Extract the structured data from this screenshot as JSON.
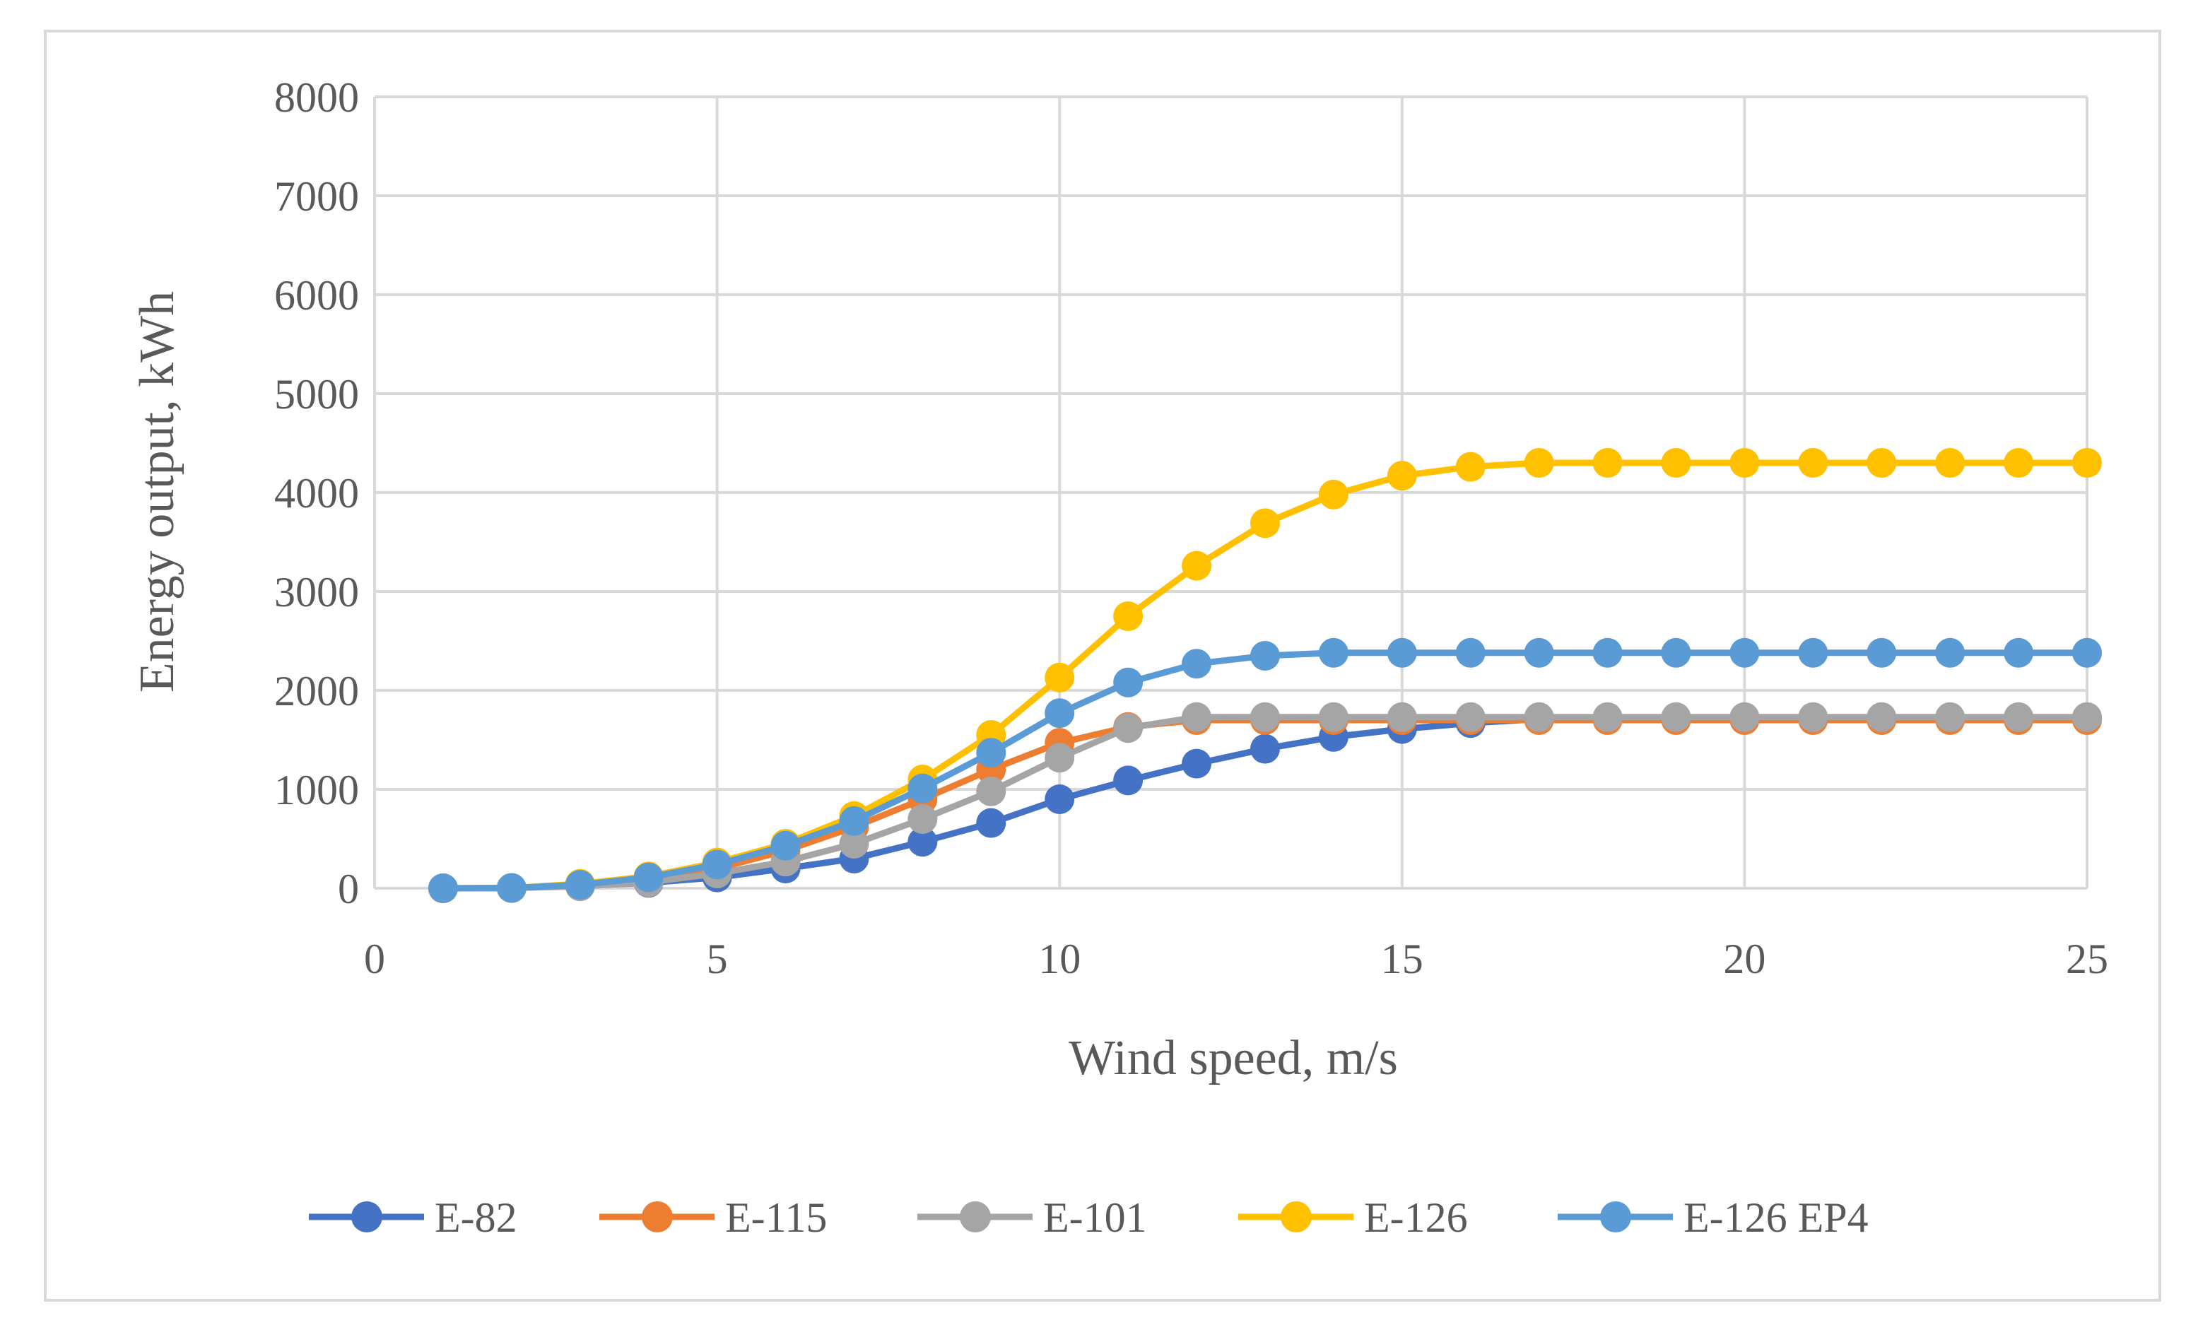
{
  "chart_data": {
    "type": "line",
    "title": "",
    "xlabel": "Wind speed, m/s",
    "ylabel": "Energy output, kWh",
    "xlim": [
      0,
      25
    ],
    "ylim": [
      0,
      8000
    ],
    "xticks": [
      0,
      5,
      10,
      15,
      20,
      25
    ],
    "yticks": [
      0,
      1000,
      2000,
      3000,
      4000,
      5000,
      6000,
      7000,
      8000
    ],
    "x": [
      1,
      2,
      3,
      4,
      5,
      6,
      7,
      8,
      9,
      10,
      11,
      12,
      13,
      14,
      15,
      16,
      17,
      18,
      19,
      20,
      21,
      22,
      23,
      24,
      25
    ],
    "grid": true,
    "legend_position": "bottom",
    "series": [
      {
        "name": "E-82",
        "color": "#4472c4",
        "values": [
          0,
          3,
          25,
          55,
          110,
          200,
          300,
          470,
          660,
          900,
          1090,
          1260,
          1410,
          1530,
          1610,
          1670,
          1710,
          1720,
          1720,
          1720,
          1720,
          1720,
          1720,
          1720,
          1720
        ]
      },
      {
        "name": "E-115",
        "color": "#ed7d31",
        "values": [
          0,
          3,
          35,
          100,
          200,
          380,
          620,
          900,
          1200,
          1470,
          1630,
          1700,
          1700,
          1700,
          1700,
          1700,
          1700,
          1700,
          1700,
          1700,
          1700,
          1700,
          1700,
          1700,
          1700
        ]
      },
      {
        "name": "E-101",
        "color": "#a5a5a5",
        "values": [
          0,
          3,
          20,
          60,
          150,
          270,
          450,
          700,
          980,
          1320,
          1620,
          1730,
          1730,
          1730,
          1730,
          1730,
          1730,
          1730,
          1730,
          1730,
          1730,
          1730,
          1730,
          1730,
          1730
        ]
      },
      {
        "name": "E-126",
        "color": "#ffc000",
        "values": [
          0,
          3,
          45,
          120,
          260,
          450,
          730,
          1100,
          1550,
          2130,
          2750,
          3260,
          3690,
          3980,
          4170,
          4260,
          4300,
          4300,
          4300,
          4300,
          4300,
          4300,
          4300,
          4300,
          4300
        ]
      },
      {
        "name": "E-126 EP4",
        "color": "#5b9bd5",
        "values": [
          0,
          3,
          35,
          110,
          240,
          430,
          680,
          1010,
          1370,
          1770,
          2080,
          2270,
          2350,
          2380,
          2380,
          2380,
          2380,
          2380,
          2380,
          2380,
          2380,
          2380,
          2380,
          2380,
          2380
        ]
      }
    ]
  },
  "colors": {
    "grid": "#d9d9d9",
    "text": "#595959",
    "frame": "#d9d9d9"
  }
}
